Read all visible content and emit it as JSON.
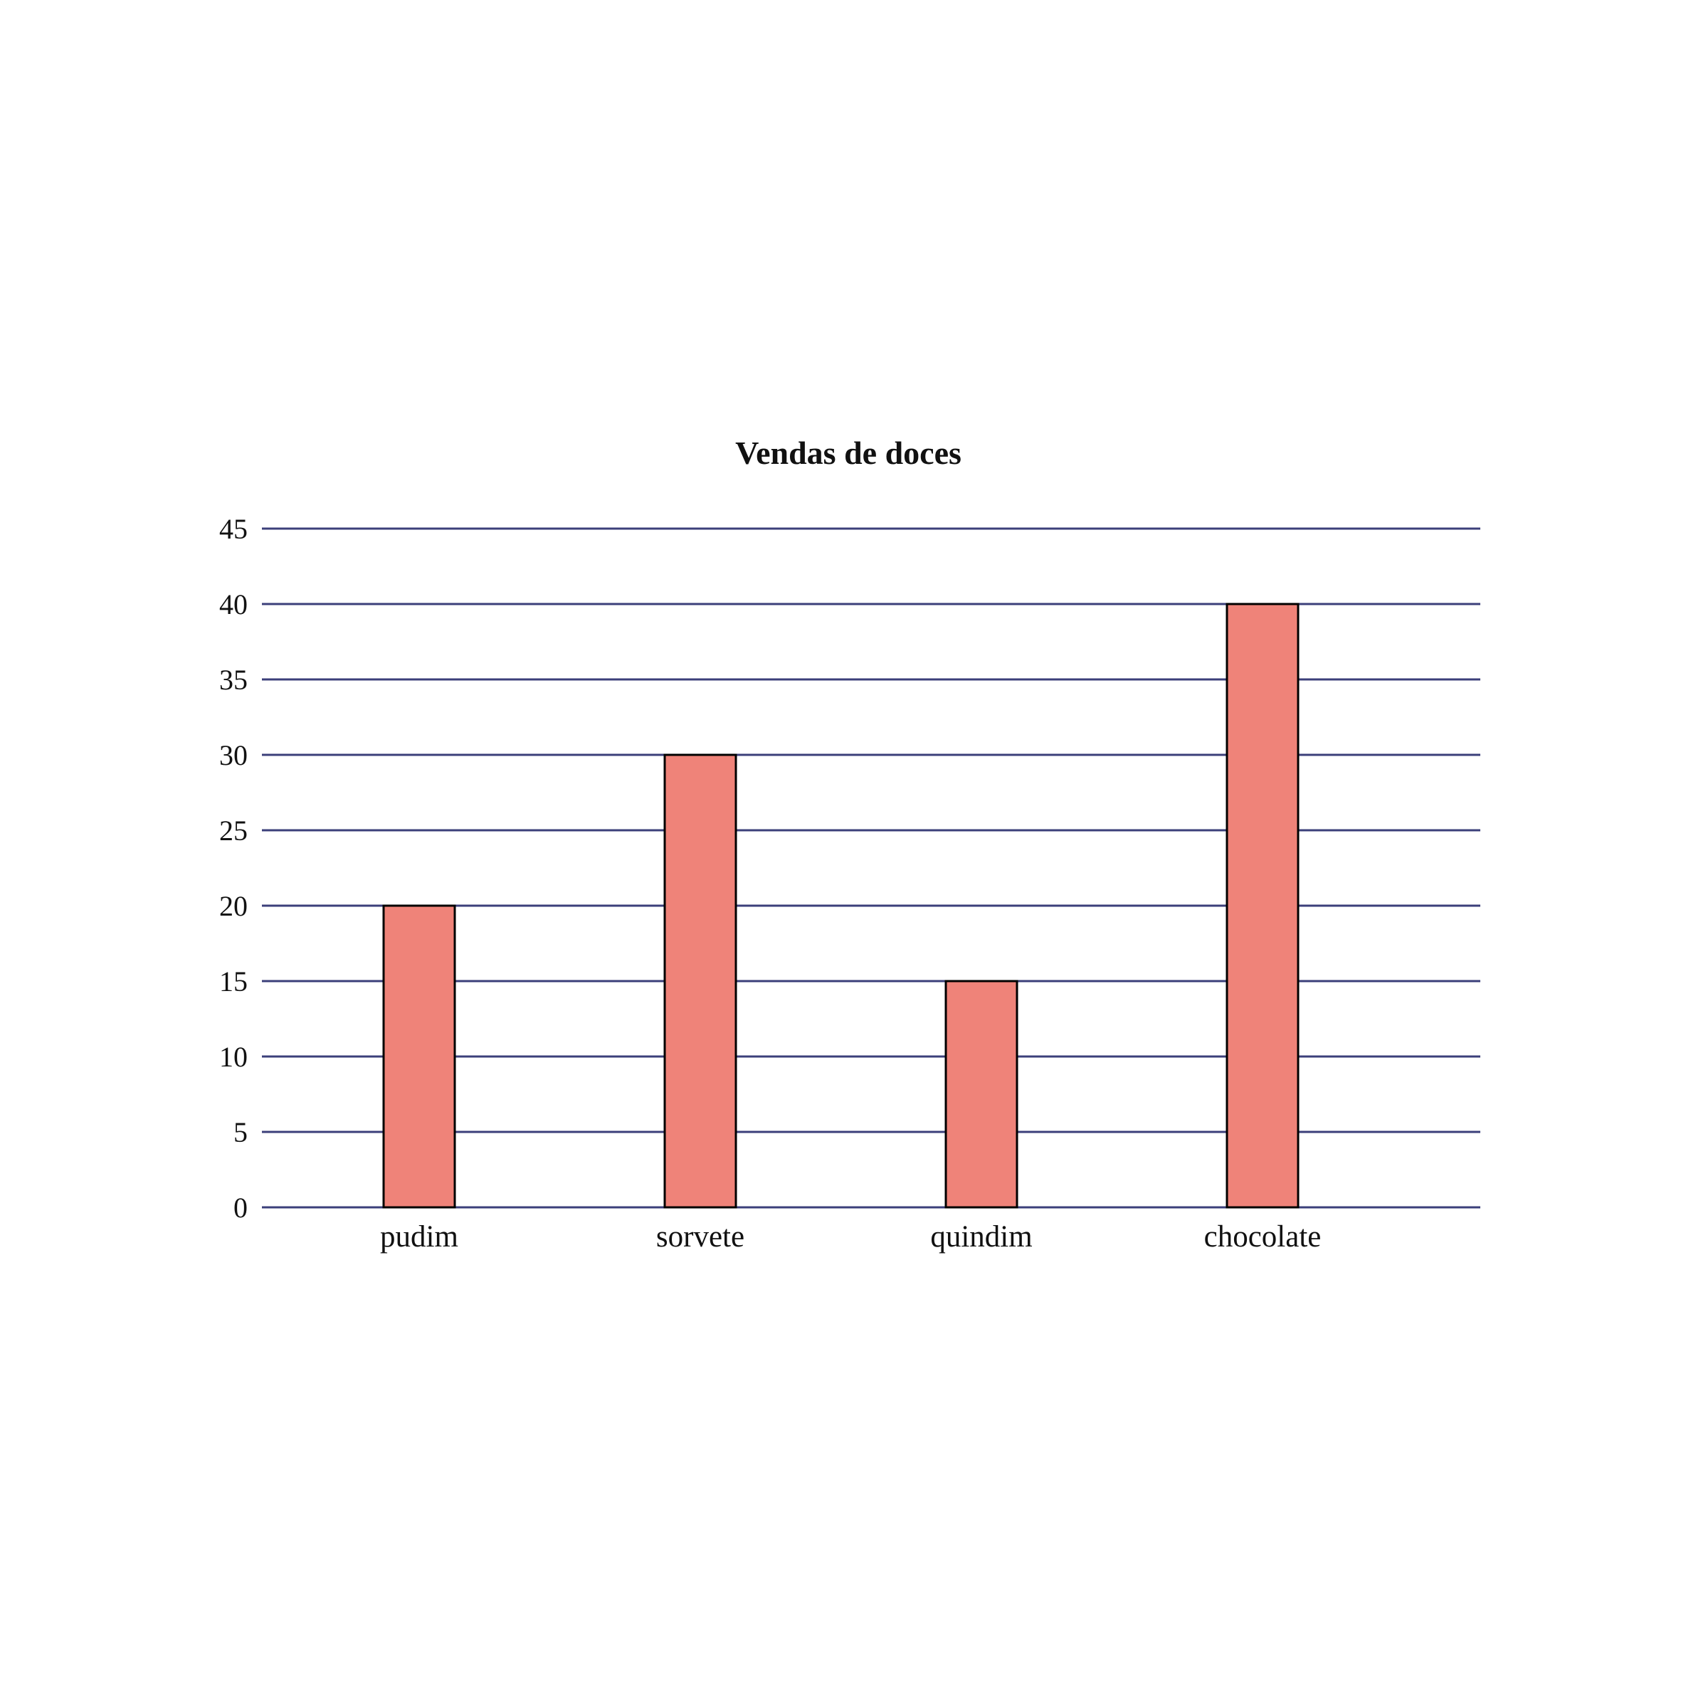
{
  "colors": {
    "bar_fill": "#ef8379",
    "bar_stroke": "#000000",
    "gridline": "#3b3f7a",
    "background": "#ffffff"
  },
  "chart_data": {
    "type": "bar",
    "title": "Vendas de doces",
    "xlabel": "",
    "ylabel": "",
    "categories": [
      "pudim",
      "sorvete",
      "quindim",
      "chocolate"
    ],
    "values": [
      20,
      30,
      15,
      40
    ],
    "ylim": [
      0,
      45
    ],
    "yticks": [
      0,
      5,
      10,
      15,
      20,
      25,
      30,
      35,
      40,
      45
    ],
    "grid": true,
    "legend": "none"
  }
}
